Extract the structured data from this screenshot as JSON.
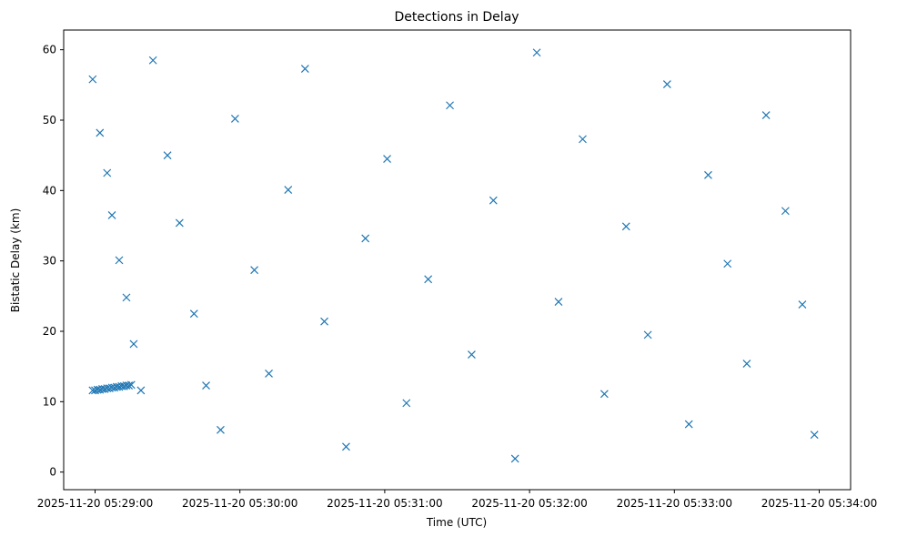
{
  "chart_data": {
    "type": "scatter",
    "title": "Detections in Delay",
    "xlabel": "Time (UTC)",
    "ylabel": "Bistatic Delay (km)",
    "x_ticks": [
      "2025-11-20 05:29:00",
      "2025-11-20 05:30:00",
      "2025-11-20 05:31:00",
      "2025-11-20 05:32:00",
      "2025-11-20 05:33:00",
      "2025-11-20 05:34:00"
    ],
    "y_ticks": [
      "0",
      "10",
      "20",
      "30",
      "40",
      "50",
      "60"
    ],
    "xlim": [
      "2025-11-20 05:28:47",
      "2025-11-20 05:34:13"
    ],
    "ylim": [
      -2.5,
      62.8
    ],
    "grid": false,
    "marker": "x",
    "color": "#1f77b4",
    "series": [
      {
        "x": [
          "2025-11-20 05:28:59",
          "2025-11-20 05:29:02",
          "2025-11-20 05:29:05",
          "2025-11-20 05:29:07",
          "2025-11-20 05:29:10",
          "2025-11-20 05:29:13",
          "2025-11-20 05:29:16",
          "2025-11-20 05:29:19",
          "2025-11-20 05:29:24",
          "2025-11-20 05:29:30",
          "2025-11-20 05:29:35",
          "2025-11-20 05:29:41",
          "2025-11-20 05:29:46",
          "2025-11-20 05:29:52",
          "2025-11-20 05:29:58",
          "2025-11-20 05:30:06",
          "2025-11-20 05:30:12",
          "2025-11-20 05:30:20",
          "2025-11-20 05:30:27",
          "2025-11-20 05:30:35",
          "2025-11-20 05:30:44",
          "2025-11-20 05:30:52",
          "2025-11-20 05:31:01",
          "2025-11-20 05:31:09",
          "2025-11-20 05:31:18",
          "2025-11-20 05:31:27",
          "2025-11-20 05:31:36",
          "2025-11-20 05:31:45",
          "2025-11-20 05:31:54",
          "2025-11-20 05:32:03",
          "2025-11-20 05:32:12",
          "2025-11-20 05:32:22",
          "2025-11-20 05:32:31",
          "2025-11-20 05:32:40",
          "2025-11-20 05:32:49",
          "2025-11-20 05:32:57",
          "2025-11-20 05:33:06",
          "2025-11-20 05:33:14",
          "2025-11-20 05:33:22",
          "2025-11-20 05:33:30",
          "2025-11-20 05:33:38",
          "2025-11-20 05:33:46",
          "2025-11-20 05:33:53",
          "2025-11-20 05:33:58"
        ],
        "y": [
          55.8,
          48.2,
          42.5,
          36.5,
          30.1,
          24.8,
          18.2,
          11.6,
          58.5,
          45.0,
          35.4,
          22.5,
          12.3,
          6.0,
          50.2,
          28.7,
          14.0,
          40.1,
          57.3,
          21.4,
          3.6,
          33.2,
          44.5,
          9.8,
          27.4,
          52.1,
          16.7,
          38.6,
          1.9,
          59.6,
          24.2,
          47.3,
          11.1,
          34.9,
          19.5,
          55.1,
          6.8,
          42.2,
          29.6,
          15.4,
          50.7,
          37.1,
          23.8,
          5.3
        ]
      },
      {
        "x": [
          "2025-11-20 05:28:59",
          "2025-11-20 05:29:00",
          "2025-11-20 05:29:01",
          "2025-11-20 05:29:02",
          "2025-11-20 05:29:03",
          "2025-11-20 05:29:04",
          "2025-11-20 05:29:05",
          "2025-11-20 05:29:06",
          "2025-11-20 05:29:07",
          "2025-11-20 05:29:08",
          "2025-11-20 05:29:09",
          "2025-11-20 05:29:10",
          "2025-11-20 05:29:11",
          "2025-11-20 05:29:12",
          "2025-11-20 05:29:13",
          "2025-11-20 05:29:14",
          "2025-11-20 05:29:15"
        ],
        "y": [
          11.6,
          11.6,
          11.7,
          11.7,
          11.8,
          11.8,
          11.9,
          11.9,
          12.0,
          12.0,
          12.1,
          12.1,
          12.2,
          12.2,
          12.3,
          12.3,
          12.4
        ]
      }
    ]
  }
}
